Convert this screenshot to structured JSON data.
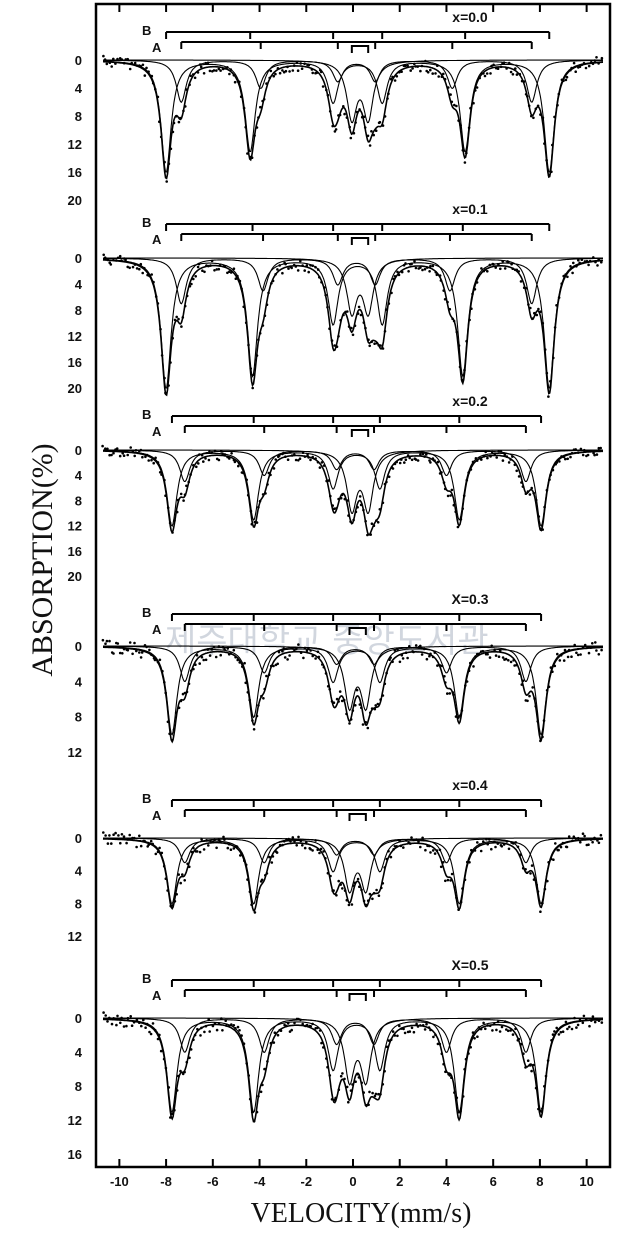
{
  "chart_data": {
    "type": "scatter",
    "xlabel": "VELOCITY(mm/s)",
    "ylabel": "ABSORPTION(%)",
    "xlim": [
      -11,
      11
    ],
    "x_ticks": [
      -10,
      -8,
      -6,
      -4,
      -2,
      0,
      2,
      4,
      6,
      8,
      10
    ],
    "grid": false,
    "site_labels": [
      "B",
      "A"
    ],
    "watermark_text": "제주대학교 중앙도서관",
    "panels": [
      {
        "label": "x=0.0",
        "y_ticks": [
          0,
          4,
          8,
          12,
          16,
          20
        ],
        "ylim": [
          -3,
          22
        ],
        "sextet_B": {
          "center": 0.2,
          "half_widths": [
            8.2,
            4.6,
            1.05
          ],
          "depths": [
            16,
            13,
            6
          ]
        },
        "sextet_A": {
          "center": 0.15,
          "half_widths": [
            7.5,
            4.1,
            0.8
          ],
          "depths": [
            6,
            4,
            3
          ]
        },
        "doublet": {
          "center": 0.3,
          "half_split": 0.35,
          "depth": 16
        }
      },
      {
        "label": "x=0.1",
        "y_ticks": [
          0,
          4,
          8,
          12,
          16,
          20
        ],
        "ylim": [
          -3,
          24
        ],
        "sextet_B": {
          "center": 0.2,
          "half_widths": [
            8.2,
            4.5,
            1.05
          ],
          "depths": [
            20,
            18,
            10
          ]
        },
        "sextet_A": {
          "center": 0.15,
          "half_widths": [
            7.5,
            4.0,
            0.8
          ],
          "depths": [
            7,
            5,
            4
          ]
        },
        "doublet": {
          "center": 0.3,
          "half_split": 0.35,
          "depth": 16
        }
      },
      {
        "label": "x=0.2",
        "y_ticks": [
          0,
          4,
          8,
          12,
          16,
          20
        ],
        "ylim": [
          -3,
          23
        ],
        "sextet_B": {
          "center": 0.15,
          "half_widths": [
            7.9,
            4.4,
            1.0
          ],
          "depths": [
            12,
            11,
            6
          ]
        },
        "sextet_A": {
          "center": 0.1,
          "half_widths": [
            7.3,
            3.9,
            0.8
          ],
          "depths": [
            5,
            4,
            3
          ]
        },
        "doublet": {
          "center": 0.3,
          "half_split": 0.35,
          "depth": 18
        }
      },
      {
        "label": "X=0.3",
        "y_ticks": [
          0,
          4,
          8,
          12
        ],
        "ylim": [
          -3,
          15
        ],
        "sextet_B": {
          "center": 0.15,
          "half_widths": [
            7.9,
            4.4,
            1.0
          ],
          "depths": [
            10,
            8,
            4
          ]
        },
        "sextet_A": {
          "center": 0.1,
          "half_widths": [
            7.3,
            3.9,
            0.8
          ],
          "depths": [
            4,
            3,
            2
          ]
        },
        "doublet": {
          "center": 0.2,
          "half_split": 0.35,
          "depth": 13
        }
      },
      {
        "label": "x=0.4",
        "y_ticks": [
          0,
          4,
          8,
          12
        ],
        "ylim": [
          -3,
          15
        ],
        "sextet_B": {
          "center": 0.15,
          "half_widths": [
            7.9,
            4.4,
            1.0
          ],
          "depths": [
            8,
            8,
            4
          ]
        },
        "sextet_A": {
          "center": 0.1,
          "half_widths": [
            7.3,
            3.9,
            0.8
          ],
          "depths": [
            3,
            3,
            2
          ]
        },
        "doublet": {
          "center": 0.2,
          "half_split": 0.35,
          "depth": 12
        }
      },
      {
        "label": "X=0.5",
        "y_ticks": [
          0,
          4,
          8,
          12,
          16
        ],
        "ylim": [
          -3,
          18
        ],
        "sextet_B": {
          "center": 0.15,
          "half_widths": [
            7.9,
            4.4,
            1.0
          ],
          "depths": [
            11,
            11,
            6
          ]
        },
        "sextet_A": {
          "center": 0.1,
          "half_widths": [
            7.3,
            3.9,
            0.8
          ],
          "depths": [
            4,
            4,
            3
          ]
        },
        "doublet": {
          "center": 0.2,
          "half_split": 0.35,
          "depth": 14
        }
      }
    ]
  }
}
